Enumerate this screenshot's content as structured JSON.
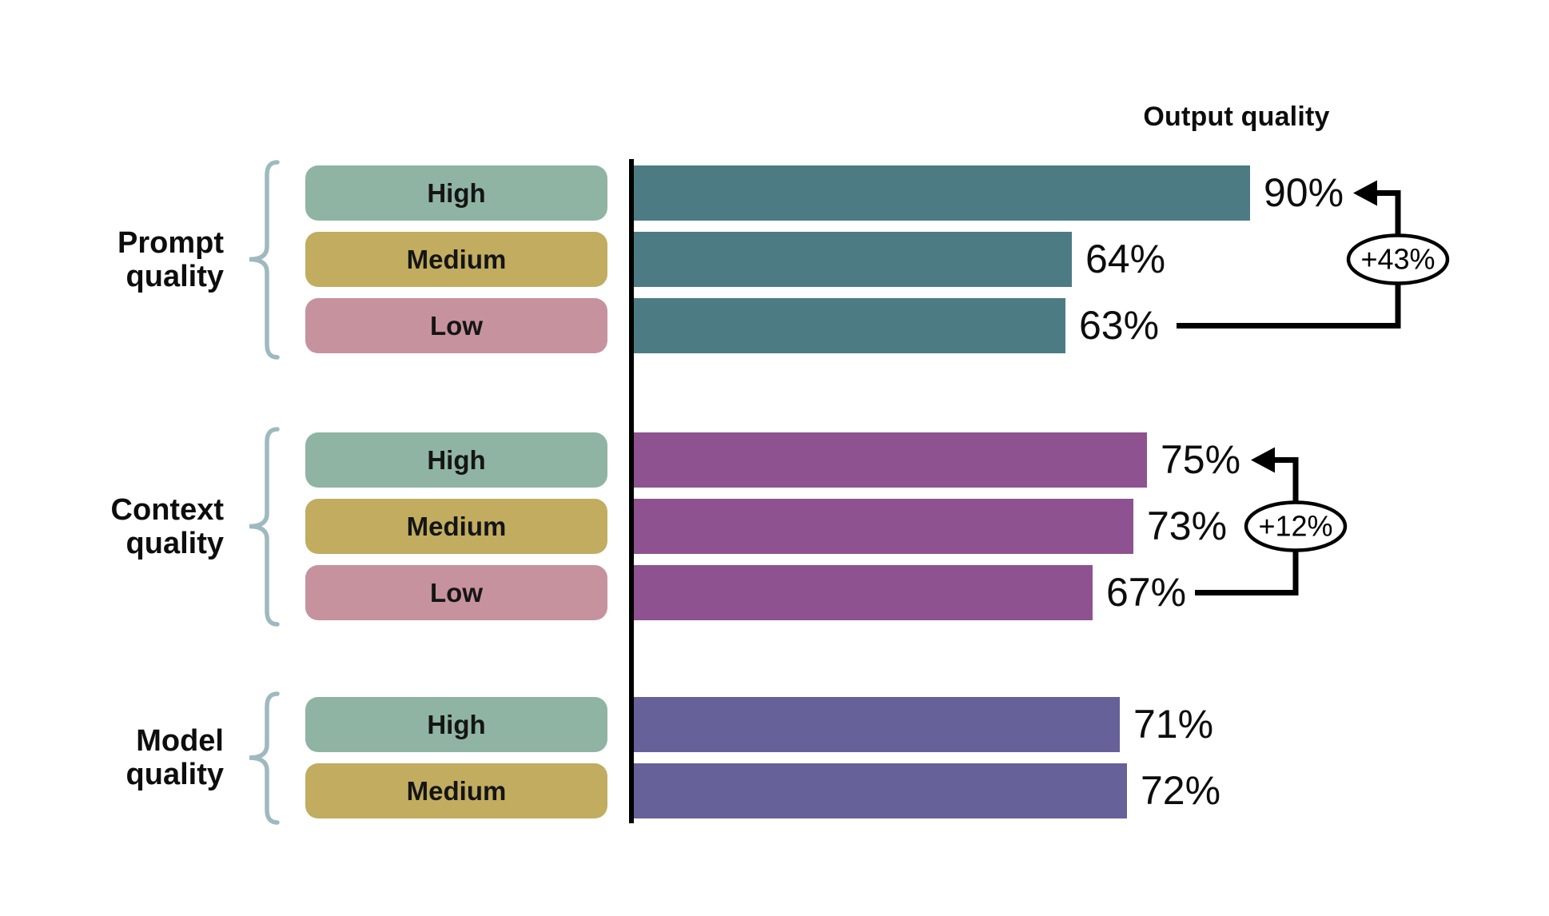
{
  "chart_data": {
    "type": "bar",
    "orientation": "horizontal",
    "title": "Output quality",
    "unit": "%",
    "xlim": [
      0,
      100
    ],
    "grid": false,
    "brace_color": "#9EB9BF",
    "level_colors": {
      "High": "#8FB4A3",
      "Medium": "#C1AC60",
      "Low": "#C6929E"
    },
    "groups": [
      {
        "label": "Prompt quality",
        "bar_color": "#4D7B84",
        "rows": [
          {
            "level": "High",
            "value": 90,
            "value_label": "90%"
          },
          {
            "level": "Medium",
            "value": 64,
            "value_label": "64%"
          },
          {
            "level": "Low",
            "value": 63,
            "value_label": "63%"
          }
        ],
        "annotation": {
          "label": "+43%",
          "from_row": 2,
          "to_row": 0
        }
      },
      {
        "label": "Context quality",
        "bar_color": "#8E5290",
        "rows": [
          {
            "level": "High",
            "value": 75,
            "value_label": "75%"
          },
          {
            "level": "Medium",
            "value": 73,
            "value_label": "73%"
          },
          {
            "level": "Low",
            "value": 67,
            "value_label": "67%"
          }
        ],
        "annotation": {
          "label": "+12%",
          "from_row": 2,
          "to_row": 0
        }
      },
      {
        "label": "Model quality",
        "bar_color": "#666199",
        "rows": [
          {
            "level": "High",
            "value": 71,
            "value_label": "71%"
          },
          {
            "level": "Medium",
            "value": 72,
            "value_label": "72%"
          }
        ],
        "annotation": null
      }
    ]
  }
}
